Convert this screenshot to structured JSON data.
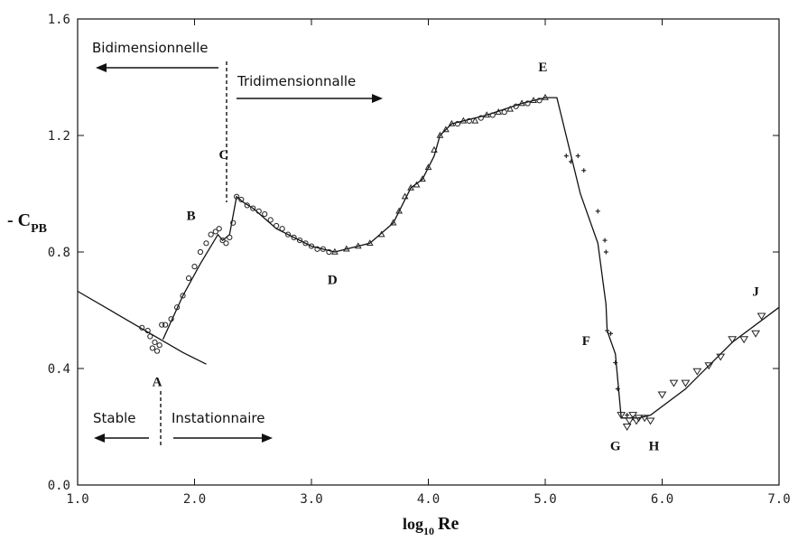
{
  "chart_data": {
    "type": "scatter",
    "xlabel_main": "log",
    "xlabel_sub": "10",
    "xlabel_tail": "Re",
    "ylabel_prefix": "- C",
    "ylabel_sub": "PB",
    "xlim": [
      1.0,
      7.0
    ],
    "ylim": [
      0.0,
      1.6
    ],
    "x_ticks": [
      1.0,
      2.0,
      3.0,
      4.0,
      5.0,
      6.0,
      7.0
    ],
    "x_tick_labels": [
      "1.0",
      "2.0",
      "3.0",
      "4.0",
      "5.0",
      "6.0",
      "7.0"
    ],
    "y_ticks": [
      0.0,
      0.4,
      0.8,
      1.2,
      1.6
    ],
    "y_tick_labels": [
      "0.0",
      "0.4",
      "0.8",
      "1.2",
      "1.6"
    ],
    "grid": false,
    "annotations": {
      "bidimensionnelle": "Bidimensionnelle",
      "tridimensionnalle": "Tridimensionnalle",
      "stable": "Stable",
      "instationnaire": "Instationnaire"
    },
    "points_labels": [
      {
        "label": "A",
        "x": 1.68,
        "y": 0.34
      },
      {
        "label": "B",
        "x": 1.97,
        "y": 0.91
      },
      {
        "label": "C",
        "x": 2.25,
        "y": 1.12
      },
      {
        "label": "D",
        "x": 3.18,
        "y": 0.69
      },
      {
        "label": "E",
        "x": 4.98,
        "y": 1.42
      },
      {
        "label": "F",
        "x": 5.35,
        "y": 0.48
      },
      {
        "label": "G",
        "x": 5.6,
        "y": 0.12
      },
      {
        "label": "H",
        "x": 5.93,
        "y": 0.12
      },
      {
        "label": "J",
        "x": 6.8,
        "y": 0.65
      }
    ],
    "laminar_curve": {
      "x": [
        1.0,
        1.3,
        1.6,
        1.9,
        2.1
      ],
      "y": [
        0.665,
        0.595,
        0.525,
        0.455,
        0.415
      ]
    },
    "main_curve": {
      "x": [
        1.73,
        1.9,
        2.05,
        2.2,
        2.24,
        2.3,
        2.36,
        2.42,
        2.5,
        2.7,
        3.0,
        3.2,
        3.5,
        3.7,
        3.85,
        3.95,
        4.05,
        4.1,
        4.2,
        4.5,
        4.8,
        5.0,
        5.1,
        5.3,
        5.45,
        5.52,
        5.53,
        5.6,
        5.65,
        5.8,
        5.9,
        6.2,
        6.6,
        7.0
      ],
      "y": [
        0.5,
        0.65,
        0.76,
        0.86,
        0.84,
        0.86,
        0.99,
        0.97,
        0.95,
        0.88,
        0.82,
        0.8,
        0.83,
        0.9,
        1.02,
        1.05,
        1.13,
        1.2,
        1.24,
        1.27,
        1.31,
        1.33,
        1.33,
        1.0,
        0.83,
        0.62,
        0.53,
        0.45,
        0.23,
        0.23,
        0.24,
        0.33,
        0.49,
        0.61
      ]
    },
    "series": [
      {
        "marker": "circle",
        "x": [
          1.55,
          1.6,
          1.62,
          1.64,
          1.66,
          1.68,
          1.7,
          1.72,
          1.75,
          1.8,
          1.85,
          1.9,
          1.95,
          2.0,
          2.05,
          2.1,
          2.14,
          2.18,
          2.21,
          2.24,
          2.27,
          2.3,
          2.33,
          2.36,
          2.4,
          2.45,
          2.5,
          2.55,
          2.6,
          2.65,
          2.7,
          2.75,
          2.8,
          2.85,
          2.9,
          2.95,
          3.0,
          3.05,
          3.1,
          3.15
        ],
        "y": [
          0.54,
          0.53,
          0.51,
          0.47,
          0.49,
          0.46,
          0.48,
          0.55,
          0.55,
          0.57,
          0.61,
          0.65,
          0.71,
          0.75,
          0.8,
          0.83,
          0.86,
          0.87,
          0.88,
          0.84,
          0.83,
          0.85,
          0.9,
          0.99,
          0.98,
          0.96,
          0.95,
          0.94,
          0.93,
          0.91,
          0.89,
          0.88,
          0.86,
          0.85,
          0.84,
          0.83,
          0.82,
          0.81,
          0.81,
          0.8
        ]
      },
      {
        "marker": "triangle-up",
        "x": [
          3.2,
          3.3,
          3.4,
          3.5,
          3.6,
          3.7,
          3.75,
          3.8,
          3.85,
          3.9,
          3.95,
          4.0,
          4.05,
          4.1,
          4.15,
          4.2,
          4.3,
          4.4,
          4.5,
          4.6,
          4.7,
          4.8,
          4.9,
          5.0
        ],
        "y": [
          0.8,
          0.81,
          0.82,
          0.83,
          0.86,
          0.9,
          0.94,
          0.99,
          1.02,
          1.03,
          1.05,
          1.09,
          1.15,
          1.2,
          1.22,
          1.24,
          1.25,
          1.25,
          1.27,
          1.28,
          1.29,
          1.31,
          1.32,
          1.33
        ]
      },
      {
        "marker": "circle",
        "x": [
          4.25,
          4.35,
          4.45,
          4.55,
          4.65,
          4.75,
          4.85,
          4.95
        ],
        "y": [
          1.24,
          1.25,
          1.26,
          1.27,
          1.28,
          1.3,
          1.31,
          1.32
        ]
      },
      {
        "marker": "plus",
        "x": [
          5.18,
          5.22,
          5.28,
          5.33,
          5.45,
          5.51,
          5.52,
          5.53,
          5.56,
          5.6,
          5.62,
          5.7,
          5.75
        ],
        "y": [
          1.13,
          1.11,
          1.13,
          1.08,
          0.94,
          0.84,
          0.8,
          0.53,
          0.52,
          0.42,
          0.33,
          0.24,
          0.23
        ]
      },
      {
        "marker": "triangle-down",
        "x": [
          5.65,
          5.7,
          5.72,
          5.75,
          5.78,
          5.8,
          5.85,
          5.9,
          6.0,
          6.1,
          6.2,
          6.3,
          6.4,
          6.5,
          6.6,
          6.7,
          6.8,
          6.85
        ],
        "y": [
          0.24,
          0.2,
          0.22,
          0.24,
          0.22,
          0.23,
          0.23,
          0.22,
          0.31,
          0.35,
          0.35,
          0.39,
          0.41,
          0.44,
          0.5,
          0.5,
          0.52,
          0.58
        ]
      }
    ]
  }
}
